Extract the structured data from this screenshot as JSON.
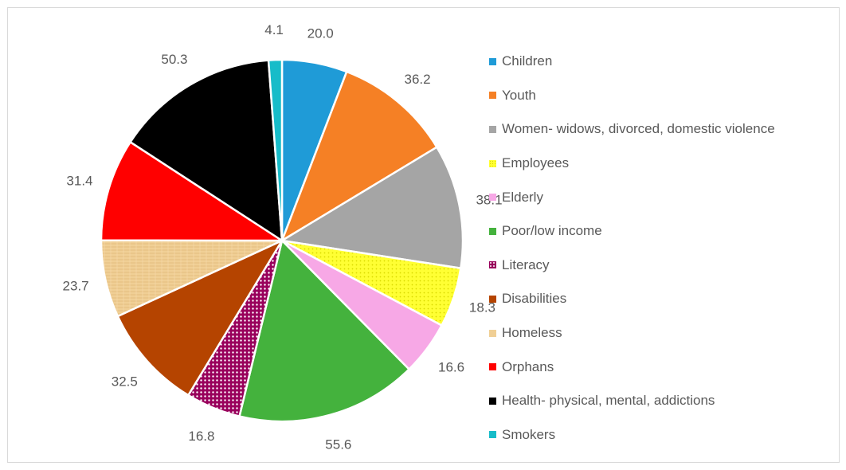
{
  "chart_data": {
    "type": "pie",
    "title": "",
    "categories": [
      "Children",
      "Youth",
      "Women- widows, divorced, domestic violence",
      "Employees",
      "Elderly",
      "Poor/low income",
      "Literacy",
      "Disabilities",
      "Homeless",
      "Orphans",
      "Health- physical, mental, addictions",
      "Smokers"
    ],
    "values": [
      20.0,
      36.2,
      38.1,
      18.3,
      16.6,
      55.6,
      16.8,
      32.5,
      23.7,
      31.4,
      50.3,
      4.1
    ],
    "value_labels": [
      "20.0",
      "36.2",
      "38.1",
      "18.3",
      "16.6",
      "55.6",
      "16.8",
      "32.5",
      "23.7",
      "31.4",
      "50.3",
      "4.1"
    ],
    "colors": [
      "#1f9bd7",
      "#f58025",
      "#a5a5a5",
      "#ffff33",
      "#f7a8e6",
      "#44b23d",
      "#99005c",
      "#b54400",
      "#f0cf95",
      "#ff0000",
      "#000000",
      "#17bcc9"
    ],
    "patterns": [
      "solid",
      "solid",
      "solid",
      "dots",
      "solid",
      "solid",
      "dots",
      "solid",
      "texture",
      "solid",
      "solid",
      "solid"
    ],
    "legend_position": "right",
    "start_angle_deg": 0,
    "direction": "clockwise"
  }
}
